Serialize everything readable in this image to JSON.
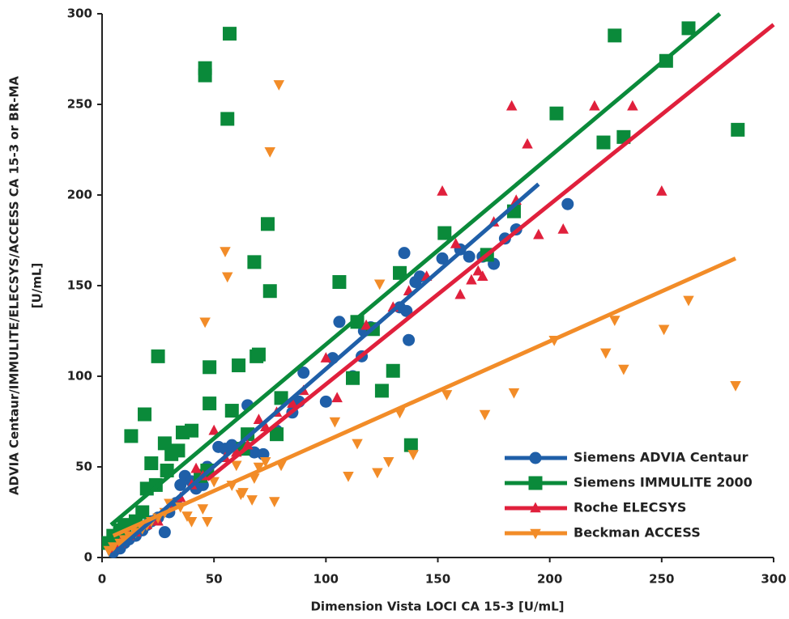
{
  "chart_data": {
    "type": "scatter",
    "xlabel": "Dimension Vista LOCI CA 15-3 [U/mL]",
    "ylabel": [
      "ADVIA Centaur/IMMULITE/ELECSYS/ACCESS CA 15-3 or BR-MA",
      "[U/mL]"
    ],
    "xlim": [
      0,
      300
    ],
    "ylim": [
      0,
      300
    ],
    "xticks": [
      0,
      50,
      100,
      150,
      200,
      250,
      300
    ],
    "yticks": [
      0,
      50,
      100,
      150,
      200,
      250,
      300
    ],
    "legend": "lower right",
    "series": [
      {
        "name": "Siemens ADVIA Centaur",
        "color": "#1f5fa8",
        "marker": "circle",
        "x": [
          5,
          8,
          10,
          12,
          15,
          18,
          20,
          22,
          25,
          28,
          30,
          33,
          35,
          37,
          40,
          42,
          45,
          47,
          52,
          55,
          58,
          62,
          65,
          68,
          72,
          78,
          85,
          88,
          90,
          100,
          103,
          106,
          112,
          116,
          117,
          120,
          133,
          135,
          136,
          137,
          140,
          142,
          152,
          160,
          164,
          170,
          175,
          180,
          185,
          208
        ],
        "y": [
          3,
          5,
          8,
          10,
          12,
          15,
          18,
          20,
          22,
          14,
          25,
          30,
          40,
          45,
          42,
          38,
          40,
          50,
          61,
          60,
          62,
          60,
          84,
          58,
          57,
          70,
          80,
          86,
          102,
          86,
          110,
          130,
          100,
          111,
          125,
          127,
          138,
          168,
          136,
          120,
          152,
          155,
          165,
          170,
          166,
          166,
          162,
          176,
          181,
          195
        ],
        "fit": {
          "x": [
            5,
            195
          ],
          "y": [
            2,
            206
          ]
        }
      },
      {
        "name": "Siemens IMMULITE 2000",
        "color": "#0a8a3a",
        "marker": "square",
        "x": [
          3,
          5,
          8,
          10,
          13,
          15,
          18,
          19,
          20,
          22,
          24,
          25,
          28,
          29,
          31,
          34,
          36,
          40,
          44,
          46,
          46,
          47,
          48,
          48,
          56,
          57,
          58,
          61,
          63,
          65,
          68,
          69,
          70,
          74,
          75,
          80,
          78,
          106,
          112,
          114,
          121,
          125,
          130,
          133,
          138,
          153,
          172,
          184,
          203,
          224,
          229,
          233,
          252,
          262,
          284
        ],
        "y": [
          8,
          12,
          15,
          18,
          67,
          20,
          25,
          79,
          38,
          52,
          40,
          111,
          63,
          48,
          57,
          59,
          69,
          70,
          45,
          270,
          266,
          48,
          85,
          105,
          242,
          289,
          81,
          106,
          60,
          68,
          163,
          111,
          112,
          184,
          147,
          88,
          68,
          152,
          99,
          130,
          126,
          92,
          103,
          157,
          62,
          179,
          167,
          191,
          245,
          229,
          288,
          232,
          274,
          292,
          236
        ],
        "fit": {
          "x": [
            4,
            276
          ],
          "y": [
            18,
            300
          ]
        }
      },
      {
        "name": "Roche ELECSYS",
        "color": "#e0203c",
        "marker": "triangle-up",
        "x": [
          5,
          8,
          12,
          15,
          20,
          25,
          30,
          35,
          40,
          42,
          45,
          50,
          55,
          60,
          65,
          70,
          73,
          78,
          85,
          90,
          100,
          105,
          118,
          130,
          137,
          145,
          152,
          160,
          158,
          165,
          168,
          170,
          175,
          183,
          185,
          190,
          195,
          206,
          220,
          237,
          250
        ],
        "y": [
          5,
          8,
          12,
          14,
          18,
          20,
          28,
          33,
          40,
          49,
          45,
          70,
          55,
          58,
          62,
          76,
          72,
          80,
          85,
          92,
          110,
          88,
          128,
          138,
          147,
          155,
          202,
          145,
          173,
          153,
          158,
          155,
          185,
          249,
          197,
          228,
          178,
          181,
          249,
          249,
          202
        ],
        "fit": {
          "x": [
            47,
            300
          ],
          "y": [
            43,
            294
          ]
        }
      },
      {
        "name": "Beckman ACCESS",
        "color": "#f28c28",
        "marker": "triangle-down",
        "x": [
          3,
          5,
          8,
          10,
          12,
          15,
          18,
          20,
          22,
          25,
          28,
          30,
          35,
          38,
          40,
          45,
          46,
          47,
          50,
          55,
          56,
          58,
          60,
          62,
          63,
          67,
          68,
          70,
          73,
          75,
          77,
          79,
          80,
          104,
          110,
          114,
          123,
          124,
          128,
          133,
          139,
          154,
          171,
          184,
          202,
          225,
          229,
          233,
          251,
          262,
          283
        ],
        "y": [
          4,
          6,
          8,
          10,
          12,
          14,
          16,
          18,
          20,
          22,
          25,
          30,
          28,
          23,
          20,
          27,
          130,
          20,
          42,
          169,
          155,
          40,
          51,
          35,
          36,
          32,
          44,
          50,
          53,
          224,
          31,
          261,
          51,
          75,
          45,
          63,
          47,
          151,
          53,
          80,
          57,
          90,
          79,
          91,
          120,
          113,
          131,
          104,
          126,
          142,
          95
        ],
        "fit": {
          "x": [
            5,
            283
          ],
          "y": [
            12,
            165
          ]
        }
      }
    ]
  }
}
